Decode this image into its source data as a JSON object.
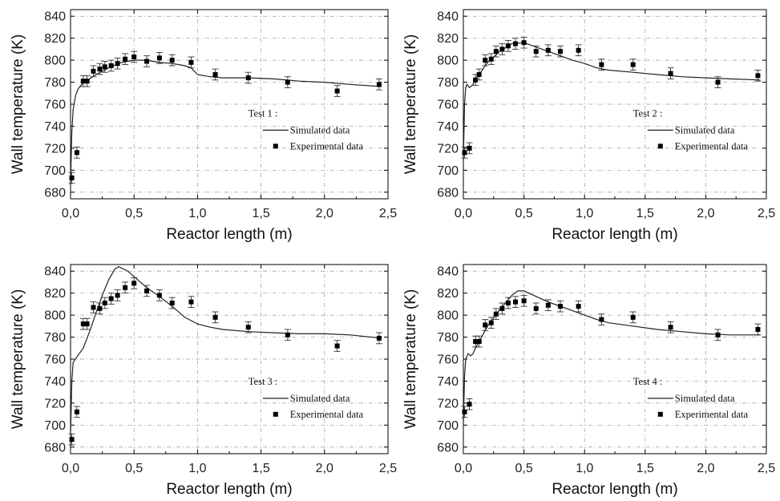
{
  "chart_data": [
    {
      "type": "line",
      "panel": "top-left",
      "xlabel": "Reactor length (m)",
      "ylabel": "Wall temperature (K)",
      "xlim": [
        0,
        2.5
      ],
      "ylim": [
        674,
        846
      ],
      "x_ticks": [
        "0,0",
        "0,5",
        "1,0",
        "1,5",
        "2,0",
        "2,5"
      ],
      "y_ticks": [
        "680",
        "700",
        "720",
        "740",
        "760",
        "780",
        "800",
        "820",
        "840"
      ],
      "grid": true,
      "legend": {
        "placement": "center-right",
        "title": "Test 1 :",
        "entries": [
          "Simulated data",
          "Experimental data"
        ]
      },
      "series": [
        {
          "name": "Simulated data",
          "kind": "line",
          "x": [
            0,
            0.01,
            0.02,
            0.04,
            0.06,
            0.08,
            0.1,
            0.15,
            0.2,
            0.3,
            0.4,
            0.5,
            0.6,
            0.7,
            0.8,
            0.9,
            0.95,
            1.0,
            1.1,
            1.2,
            1.4,
            1.6,
            1.8,
            2.0,
            2.2,
            2.45
          ],
          "y": [
            686,
            735,
            755,
            768,
            774,
            777,
            779,
            783,
            787,
            793,
            798,
            800,
            800,
            798,
            797,
            795,
            793,
            787,
            785,
            784,
            784,
            783,
            781,
            780,
            778,
            776
          ]
        },
        {
          "name": "Experimental data",
          "kind": "scatter",
          "error": 5,
          "x": [
            0.01,
            0.05,
            0.1,
            0.13,
            0.18,
            0.23,
            0.27,
            0.32,
            0.37,
            0.43,
            0.5,
            0.6,
            0.7,
            0.8,
            0.95,
            1.14,
            1.4,
            1.71,
            2.1,
            2.43
          ],
          "y": [
            693,
            716,
            781,
            781,
            790,
            792,
            794,
            795,
            797,
            801,
            803,
            799,
            802,
            800,
            798,
            787,
            784,
            780,
            772,
            778
          ]
        }
      ]
    },
    {
      "type": "line",
      "panel": "top-right",
      "xlabel": "Reactor length (m)",
      "ylabel": "Wall temperature (K)",
      "xlim": [
        0,
        2.5
      ],
      "ylim": [
        674,
        846
      ],
      "x_ticks": [
        "0,0",
        "0,5",
        "1,0",
        "1,5",
        "2,0",
        "2,5"
      ],
      "y_ticks": [
        "680",
        "700",
        "720",
        "740",
        "760",
        "780",
        "800",
        "820",
        "840"
      ],
      "grid": true,
      "legend": {
        "placement": "center-right",
        "title": "Test 2 :",
        "entries": [
          "Simulated data",
          "Experimental data"
        ]
      },
      "series": [
        {
          "name": "Simulated data",
          "kind": "line",
          "x": [
            0,
            0.01,
            0.02,
            0.03,
            0.05,
            0.08,
            0.1,
            0.15,
            0.2,
            0.3,
            0.4,
            0.5,
            0.6,
            0.7,
            0.8,
            0.9,
            1.0,
            1.1,
            1.2,
            1.4,
            1.6,
            1.8,
            2.0,
            2.2,
            2.45
          ],
          "y": [
            708,
            760,
            775,
            778,
            775,
            778,
            783,
            790,
            798,
            808,
            815,
            816,
            812,
            808,
            804,
            800,
            797,
            793,
            791,
            789,
            787,
            785,
            784,
            783,
            782
          ]
        },
        {
          "name": "Experimental data",
          "kind": "scatter",
          "error": 5,
          "x": [
            0.01,
            0.05,
            0.1,
            0.13,
            0.18,
            0.23,
            0.27,
            0.32,
            0.37,
            0.43,
            0.5,
            0.6,
            0.7,
            0.8,
            0.95,
            1.14,
            1.4,
            1.71,
            2.1,
            2.43
          ],
          "y": [
            716,
            720,
            782,
            787,
            800,
            801,
            808,
            810,
            813,
            815,
            816,
            808,
            809,
            808,
            809,
            796,
            796,
            788,
            780,
            786
          ]
        }
      ]
    },
    {
      "type": "line",
      "panel": "bottom-left",
      "xlabel": "Reactor length (m)",
      "ylabel": "Wall temperature (K)",
      "xlim": [
        0,
        2.5
      ],
      "ylim": [
        674,
        846
      ],
      "x_ticks": [
        "0,0",
        "0,5",
        "1,0",
        "1,5",
        "2,0",
        "2,5"
      ],
      "y_ticks": [
        "680",
        "700",
        "720",
        "740",
        "760",
        "780",
        "800",
        "820",
        "840"
      ],
      "grid": true,
      "legend": {
        "placement": "bottom-right",
        "title": "Test 3 :",
        "entries": [
          "Simulated data",
          "Experimental data"
        ]
      },
      "series": [
        {
          "name": "Simulated data",
          "kind": "line",
          "x": [
            0,
            0.01,
            0.02,
            0.05,
            0.1,
            0.15,
            0.2,
            0.25,
            0.3,
            0.35,
            0.38,
            0.45,
            0.5,
            0.6,
            0.7,
            0.8,
            0.9,
            1.0,
            1.1,
            1.2,
            1.4,
            1.6,
            1.8,
            2.0,
            2.2,
            2.45
          ],
          "y": [
            690,
            740,
            757,
            762,
            770,
            785,
            802,
            818,
            832,
            842,
            844,
            840,
            835,
            825,
            817,
            808,
            798,
            792,
            789,
            787,
            785,
            784,
            783,
            783,
            782,
            779
          ]
        },
        {
          "name": "Experimental data",
          "kind": "scatter",
          "error": 5,
          "x": [
            0.01,
            0.05,
            0.1,
            0.13,
            0.18,
            0.23,
            0.27,
            0.32,
            0.37,
            0.43,
            0.5,
            0.6,
            0.7,
            0.8,
            0.95,
            1.14,
            1.4,
            1.71,
            2.1,
            2.43
          ],
          "y": [
            687,
            712,
            792,
            792,
            807,
            806,
            811,
            815,
            818,
            825,
            829,
            822,
            818,
            811,
            812,
            798,
            789,
            782,
            772,
            779
          ]
        }
      ]
    },
    {
      "type": "line",
      "panel": "bottom-right",
      "xlabel": "Reactor length (m)",
      "ylabel": "Wall temperature (K)",
      "xlim": [
        0,
        2.5
      ],
      "ylim": [
        674,
        846
      ],
      "x_ticks": [
        "0,0",
        "0,5",
        "1,0",
        "1,5",
        "2,0",
        "2,5"
      ],
      "y_ticks": [
        "680",
        "700",
        "720",
        "740",
        "760",
        "780",
        "800",
        "820",
        "840"
      ],
      "grid": true,
      "legend": {
        "placement": "bottom-right",
        "title": "Test 4 :",
        "entries": [
          "Simulated data",
          "Experimental data"
        ]
      },
      "series": [
        {
          "name": "Simulated data",
          "kind": "line",
          "x": [
            0,
            0.01,
            0.02,
            0.04,
            0.06,
            0.08,
            0.1,
            0.15,
            0.2,
            0.3,
            0.4,
            0.45,
            0.5,
            0.6,
            0.7,
            0.8,
            0.9,
            1.0,
            1.1,
            1.2,
            1.4,
            1.6,
            1.8,
            2.0,
            2.2,
            2.45
          ],
          "y": [
            700,
            745,
            760,
            765,
            763,
            765,
            770,
            780,
            790,
            805,
            818,
            822,
            822,
            817,
            812,
            808,
            804,
            800,
            796,
            793,
            790,
            787,
            785,
            783,
            782,
            782
          ]
        },
        {
          "name": "Experimental data",
          "kind": "scatter",
          "error": 5,
          "x": [
            0.01,
            0.05,
            0.1,
            0.13,
            0.18,
            0.23,
            0.27,
            0.32,
            0.37,
            0.43,
            0.5,
            0.6,
            0.7,
            0.8,
            0.95,
            1.14,
            1.4,
            1.71,
            2.1,
            2.43
          ],
          "y": [
            712,
            719,
            776,
            776,
            791,
            793,
            801,
            806,
            811,
            812,
            813,
            806,
            809,
            808,
            808,
            796,
            798,
            789,
            782,
            787
          ]
        }
      ]
    }
  ]
}
